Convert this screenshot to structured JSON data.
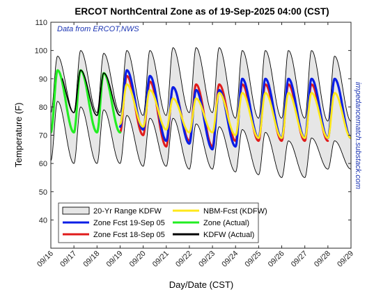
{
  "chart_data": {
    "type": "line",
    "title": "ERCOT NorthCentral Zone as of 19-Sep-2025 04:00 (CST)",
    "note": "Data from ERCOT,NWS",
    "side_text": "impedancematch.substack.com",
    "xlabel": "Day/Date (CST)",
    "ylabel": "Temperature (F)",
    "ylim": [
      30,
      110
    ],
    "yticks": [
      40,
      50,
      60,
      70,
      80,
      90,
      100,
      110
    ],
    "xlim": [
      0,
      13
    ],
    "xticks": [
      "09/16",
      "09/17",
      "09/18",
      "09/19",
      "09/20",
      "09/21",
      "09/22",
      "09/23",
      "09/24",
      "09/25",
      "09/26",
      "09/27",
      "09/28",
      "09/29"
    ],
    "grid": false,
    "legend_position": "bottom-left",
    "colors": {
      "range_fill": "#e6e6e6",
      "range_edge": "#000000",
      "zone_fcst_19": "#0a1ee6",
      "zone_fcst_18": "#e01b1b",
      "nbm": "#ffe81a",
      "zone_actual": "#22ee22",
      "kdfw_actual": "#000000"
    },
    "legend": [
      {
        "key": "range",
        "label": "20-Yr Range KDFW"
      },
      {
        "key": "nbm",
        "label": "NBM-Fcst (KDFW)"
      },
      {
        "key": "zone19",
        "label": "Zone Fcst 19-Sep 05"
      },
      {
        "key": "zoneact",
        "label": "Zone (Actual)"
      },
      {
        "key": "zone18",
        "label": "Zone Fcst 18-Sep 05"
      },
      {
        "key": "kdfw",
        "label": "KDFW (Actual)"
      }
    ],
    "series": {
      "range_max_peaks": [
        98,
        100,
        99,
        100,
        100,
        101,
        101,
        101,
        100,
        100,
        100,
        100,
        98
      ],
      "range_max_troughs": [
        78,
        78,
        78,
        78,
        77,
        77,
        78,
        78,
        76,
        76,
        76,
        76,
        75
      ],
      "range_min_peaks": [
        82,
        80,
        79,
        77,
        76,
        76,
        74,
        73,
        72,
        71,
        68,
        69,
        68
      ],
      "range_min_troughs": [
        61,
        60,
        60,
        60,
        59,
        59,
        58,
        58,
        57,
        56,
        55,
        55,
        58
      ],
      "zone_fcst_19_x": [
        3.0,
        13.0
      ],
      "zone_fcst_19_peaks": [
        93,
        93,
        92,
        93,
        91,
        87,
        86,
        86,
        90
      ],
      "zone_fcst_19_troughs": [
        73,
        74,
        72,
        73,
        72,
        68,
        67,
        65,
        66,
        69
      ],
      "zone_fcst_18_x": [
        3.0,
        12.0
      ],
      "zone_fcst_18_peaks": [
        92,
        92,
        90,
        91,
        89,
        87,
        88,
        88
      ],
      "zone_fcst_18_troughs": [
        73,
        71,
        73,
        71,
        70,
        66,
        68,
        66,
        68
      ],
      "nbm_x": [
        3.0,
        13.2
      ],
      "nbm_peaks": [
        88,
        91,
        90,
        88,
        86,
        83,
        83,
        85,
        85
      ],
      "nbm_troughs": [
        73,
        74,
        75,
        74,
        73,
        72,
        71,
        71,
        70,
        69
      ],
      "zone_actual_x": [
        0.0,
        3.0
      ],
      "zone_actual_peaks": [
        93,
        93,
        92
      ],
      "zone_actual_troughs": [
        71,
        71,
        71
      ],
      "kdfw_actual_x": [
        0.5,
        3.0
      ],
      "kdfw_actual_peaks": [
        93,
        93,
        92
      ],
      "kdfw_actual_troughs": [
        79,
        78,
        77
      ]
    }
  }
}
